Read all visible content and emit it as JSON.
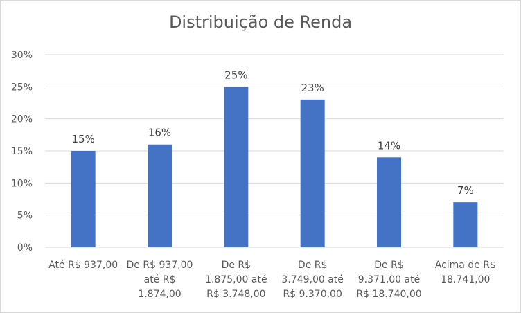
{
  "chart_data": {
    "type": "bar",
    "title": "Distribuição de Renda",
    "xlabel": "",
    "ylabel": "",
    "categories": [
      [
        "Até R$ 937,00"
      ],
      [
        "De R$ 937,00",
        "até R$",
        "1.874,00"
      ],
      [
        "De R$",
        "1.875,00 até",
        "R$ 3.748,00"
      ],
      [
        "De R$",
        "3.749,00 até",
        "R$ 9.370,00"
      ],
      [
        "De R$",
        "9.371,00 até",
        "R$ 18.740,00"
      ],
      [
        "Acima de R$",
        "18.741,00"
      ]
    ],
    "values": [
      15,
      16,
      25,
      23,
      14,
      7
    ],
    "data_labels": [
      "15%",
      "16%",
      "25%",
      "23%",
      "14%",
      "7%"
    ],
    "ylim": [
      0,
      30
    ],
    "yticks": [
      "0%",
      "5%",
      "10%",
      "15%",
      "20%",
      "25%",
      "30%"
    ],
    "grid": true,
    "legend": "none",
    "bar_color": "#4472c4"
  }
}
